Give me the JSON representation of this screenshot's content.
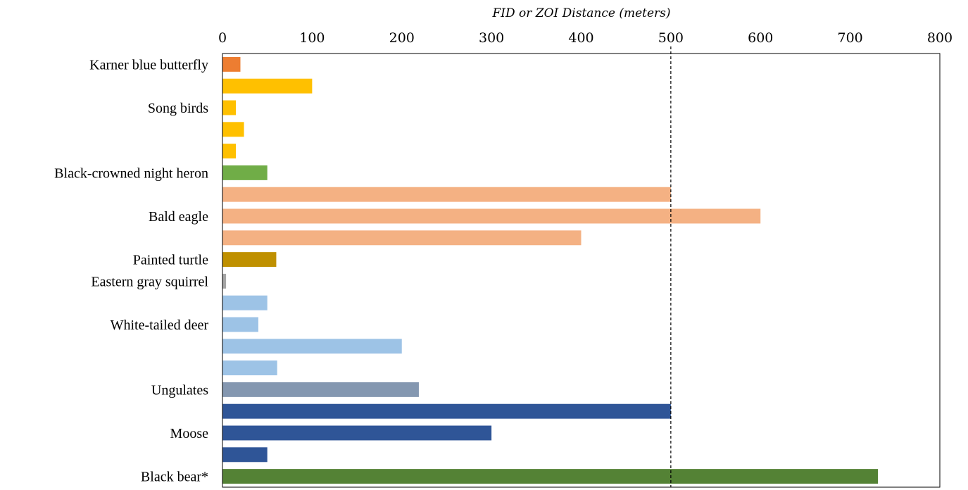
{
  "chart_data": {
    "type": "bar",
    "orientation": "horizontal",
    "title": "",
    "xlabel": "FID or ZOI Distance (meters)",
    "ylabel": "",
    "xlim": [
      0,
      800
    ],
    "xticks": [
      0,
      100,
      200,
      300,
      400,
      500,
      600,
      700,
      800
    ],
    "x_axis_position": "top",
    "grid": false,
    "reference_line": {
      "x": 500,
      "style": "dashed"
    },
    "bars": [
      {
        "category": "Karner blue butterfly",
        "value": 20,
        "color": "#ED7D31"
      },
      {
        "category": "Song birds",
        "value": 100,
        "color": "#FFC000"
      },
      {
        "category": "Song birds",
        "value": 15,
        "color": "#FFC000"
      },
      {
        "category": "Song birds",
        "value": 24,
        "color": "#FFC000"
      },
      {
        "category": "Song birds",
        "value": 15,
        "color": "#FFC000"
      },
      {
        "category": "Black-crowned night heron",
        "value": 50,
        "color": "#70AD47"
      },
      {
        "category": "Bald eagle",
        "value": 500,
        "color": "#F4B183"
      },
      {
        "category": "Bald eagle",
        "value": 600,
        "color": "#F4B183"
      },
      {
        "category": "Bald eagle",
        "value": 400,
        "color": "#F4B183"
      },
      {
        "category": "Painted turtle",
        "value": 60,
        "color": "#BF9000"
      },
      {
        "category": "Eastern gray squirrel",
        "value": 4,
        "color": "#A5A5A5"
      },
      {
        "category": "White-tailed deer",
        "value": 50,
        "color": "#9DC3E6"
      },
      {
        "category": "White-tailed deer",
        "value": 40,
        "color": "#9DC3E6"
      },
      {
        "category": "White-tailed deer",
        "value": 200,
        "color": "#9DC3E6"
      },
      {
        "category": "White-tailed deer",
        "value": 61,
        "color": "#9DC3E6"
      },
      {
        "category": "Ungulates",
        "value": 219,
        "color": "#8497B0"
      },
      {
        "category": "Moose",
        "value": 500,
        "color": "#2F5597"
      },
      {
        "category": "Moose",
        "value": 300,
        "color": "#2F5597"
      },
      {
        "category": "Moose",
        "value": 50,
        "color": "#2F5597"
      },
      {
        "category": "Black bear*",
        "value": 731,
        "color": "#548235"
      }
    ],
    "category_labels": [
      {
        "text": "Karner blue butterfly",
        "bar_index": 0
      },
      {
        "text": "Song birds",
        "bar_index": 2
      },
      {
        "text": "Black-crowned night heron",
        "bar_index": 5
      },
      {
        "text": "Bald eagle",
        "bar_index": 7
      },
      {
        "text": "Painted turtle",
        "bar_index": 9
      },
      {
        "text": "Eastern gray squirrel",
        "bar_index": 10
      },
      {
        "text": "White-tailed deer",
        "bar_index": 12
      },
      {
        "text": "Ungulates",
        "bar_index": 15
      },
      {
        "text": "Moose",
        "bar_index": 17
      },
      {
        "text": "Black bear*",
        "bar_index": 19
      }
    ]
  }
}
